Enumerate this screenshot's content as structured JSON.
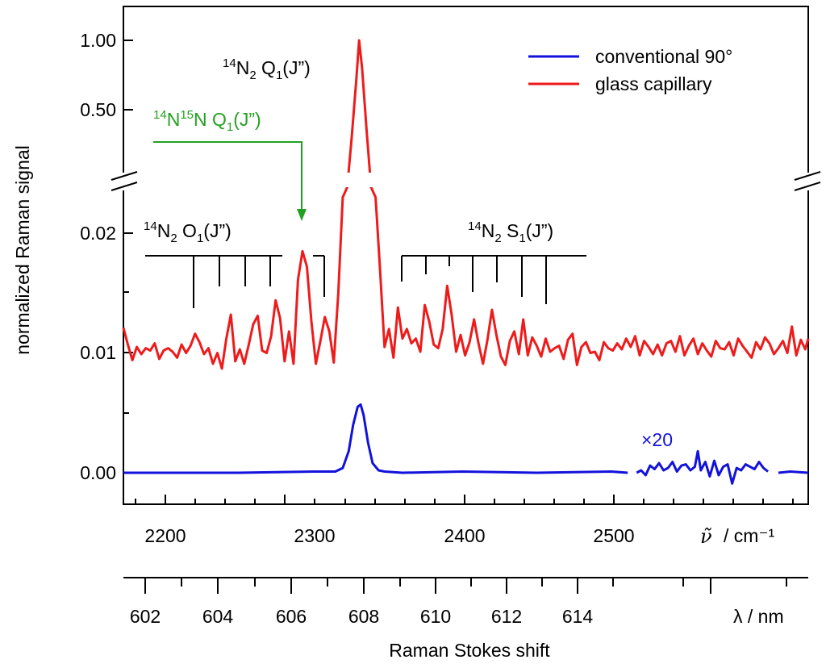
{
  "chart_data": {
    "type": "line",
    "xlabel": "Raman Stokes shift",
    "ylabel": "normalized  Raman  signal",
    "x_axis_primary": {
      "unit_label": "cm⁻¹",
      "symbol": "ν̃",
      "range": [
        2173,
        2632
      ],
      "ticks": [
        "2200",
        "2300",
        "2400",
        "2500"
      ]
    },
    "x_axis_secondary": {
      "unit_label": "λ / nm",
      "ticks": [
        "602",
        "604",
        "606",
        "608",
        "610",
        "612",
        "614"
      ]
    },
    "y_axis": {
      "broken": true,
      "lower_range": [
        -0.0025,
        0.0248
      ],
      "upper_range": [
        0.1,
        1.1
      ],
      "tick_labels": [
        "0.00",
        "0.01",
        "0.02",
        "0.50",
        "1.00"
      ]
    },
    "legend": {
      "placement": "top-right",
      "entries": [
        {
          "name": "conventional 90°",
          "color": "#1212dc"
        },
        {
          "name": "glass capillary",
          "color": "#ee1b1b"
        }
      ]
    },
    "annotations": {
      "n2_q": {
        "main": "N",
        "sup1": "14",
        "sub1": "2",
        "rest": " Q",
        "sub2": "1",
        "tail": "(J”)"
      },
      "n15n_q": {
        "sup1": "14",
        "p1": "N",
        "sup2": "15",
        "p2": "N Q",
        "sub": "1",
        "tail": "(J”)",
        "color": "#22a022"
      },
      "n2_o": {
        "sup1": "14",
        "main": "N",
        "sub1": "2",
        "rest": " O",
        "sub2": "1",
        "tail": "(J”)"
      },
      "n2_s": {
        "sup1": "14",
        "main": "N",
        "sub1": "2",
        "rest": " S",
        "sub2": "1",
        "tail": "(J”)"
      },
      "scale_factor": "×20"
    },
    "o_branch_lines_cm": [
      2222,
      2238,
      2254,
      2270,
      2305
    ],
    "s_branch_lines_cm": [
      2357,
      2374,
      2390,
      2406,
      2422,
      2438,
      2455
    ],
    "series": [
      {
        "name": "glass capillary",
        "color": "#ee1b1b",
        "x": [
          2173,
          2176,
          2179,
          2182,
          2185,
          2188,
          2191,
          2194,
          2197,
          2200,
          2203,
          2206,
          2209,
          2212,
          2215,
          2218,
          2221,
          2224,
          2227,
          2230,
          2233,
          2236,
          2239,
          2242,
          2245,
          2248,
          2251,
          2254,
          2257,
          2260,
          2263,
          2266,
          2269,
          2272,
          2275,
          2278,
          2281,
          2284,
          2287,
          2290,
          2293,
          2296,
          2299,
          2302,
          2305,
          2308,
          2311,
          2314,
          2317,
          2320,
          2323,
          2326,
          2329,
          2331,
          2333,
          2336,
          2339,
          2342,
          2345,
          2348,
          2351,
          2354,
          2357,
          2360,
          2363,
          2366,
          2369,
          2372,
          2375,
          2378,
          2381,
          2384,
          2387,
          2390,
          2393,
          2396,
          2399,
          2402,
          2405,
          2408,
          2411,
          2414,
          2417,
          2420,
          2423,
          2426,
          2429,
          2432,
          2435,
          2438,
          2441,
          2444,
          2447,
          2450,
          2453,
          2456,
          2459,
          2462,
          2465,
          2468,
          2471,
          2474,
          2477,
          2480,
          2483,
          2486,
          2489,
          2492,
          2495,
          2498,
          2501,
          2504,
          2507,
          2510,
          2513,
          2516,
          2519,
          2522,
          2525,
          2528,
          2531,
          2534,
          2537,
          2540,
          2543,
          2546,
          2549,
          2552,
          2555,
          2558,
          2561,
          2564,
          2567,
          2570,
          2573,
          2576,
          2579,
          2582,
          2585,
          2588,
          2591,
          2594,
          2597,
          2600,
          2603,
          2606,
          2609,
          2612,
          2615,
          2618,
          2621,
          2624,
          2627,
          2630,
          2632
        ],
        "y": [
          0.0121,
          0.0107,
          0.0094,
          0.0105,
          0.0099,
          0.0104,
          0.0102,
          0.0108,
          0.0095,
          0.0102,
          0.0104,
          0.0101,
          0.0096,
          0.0107,
          0.01,
          0.0106,
          0.0116,
          0.0109,
          0.0099,
          0.0104,
          0.0091,
          0.01,
          0.0087,
          0.0112,
          0.0132,
          0.0093,
          0.0103,
          0.0091,
          0.0107,
          0.0124,
          0.0131,
          0.0102,
          0.01,
          0.0114,
          0.0144,
          0.0129,
          0.0093,
          0.0118,
          0.0091,
          0.0161,
          0.0185,
          0.0172,
          0.0126,
          0.0091,
          0.011,
          0.013,
          0.0118,
          0.0092,
          0.015,
          0.023,
          0.04,
          0.3,
          0.7,
          1.0,
          0.8,
          0.35,
          0.045,
          0.023,
          0.017,
          0.0105,
          0.012,
          0.0096,
          0.0138,
          0.0112,
          0.012,
          0.0108,
          0.0112,
          0.0101,
          0.014,
          0.0126,
          0.0107,
          0.0104,
          0.012,
          0.0156,
          0.0132,
          0.0101,
          0.0115,
          0.0098,
          0.0109,
          0.0128,
          0.0108,
          0.0091,
          0.0111,
          0.0136,
          0.0115,
          0.0097,
          0.009,
          0.011,
          0.0118,
          0.0099,
          0.0128,
          0.0098,
          0.0113,
          0.0106,
          0.0097,
          0.0112,
          0.0101,
          0.0104,
          0.0106,
          0.0095,
          0.0111,
          0.0116,
          0.009,
          0.0105,
          0.0109,
          0.01,
          0.0101,
          0.0094,
          0.0109,
          0.0104,
          0.0102,
          0.0108,
          0.0103,
          0.0112,
          0.0105,
          0.0114,
          0.0098,
          0.011,
          0.0105,
          0.0099,
          0.0107,
          0.0098,
          0.0108,
          0.011,
          0.0101,
          0.0114,
          0.0098,
          0.0106,
          0.0112,
          0.0099,
          0.0108,
          0.0102,
          0.0097,
          0.011,
          0.0104,
          0.0103,
          0.0109,
          0.0098,
          0.0112,
          0.0106,
          0.0101,
          0.0096,
          0.0109,
          0.0103,
          0.0113,
          0.0108,
          0.0099,
          0.0104,
          0.011,
          0.01,
          0.0122,
          0.0098,
          0.0111,
          0.0103,
          0.0112
        ]
      },
      {
        "name": "conventional 90°",
        "color": "#1212dc",
        "x": [
          2173,
          2200,
          2250,
          2300,
          2315,
          2320,
          2324,
          2327,
          2330,
          2332,
          2334,
          2337,
          2340,
          2344,
          2348,
          2360,
          2400,
          2450,
          2500,
          2511
        ],
        "y": [
          0.0,
          0.0,
          0.0,
          0.0001,
          0.0001,
          0.0004,
          0.0018,
          0.004,
          0.0055,
          0.0057,
          0.0048,
          0.0025,
          0.0008,
          0.0002,
          0.0001,
          0.0,
          0.0001,
          0.0,
          0.0001,
          0.0
        ]
      },
      {
        "name": "conventional 90° (×20)",
        "color": "#1212dc",
        "x": [
          2517,
          2520,
          2523,
          2526,
          2529,
          2532,
          2535,
          2538,
          2541,
          2544,
          2547,
          2550,
          2553,
          2556,
          2558,
          2560,
          2563,
          2566,
          2569,
          2572,
          2575,
          2578,
          2581,
          2584,
          2587,
          2590,
          2593,
          2596,
          2599,
          2602,
          2605
        ],
        "y": [
          0.0,
          0.0002,
          -0.0002,
          0.0006,
          0.0003,
          0.0008,
          0.0002,
          0.0004,
          0.0009,
          0.0001,
          0.0006,
          0.0007,
          0.0002,
          0.0005,
          0.0018,
          0.0002,
          0.0009,
          -0.0003,
          0.001,
          -0.0002,
          0.0005,
          0.0007,
          -0.0009,
          0.0004,
          0.0002,
          0.0007,
          0.0005,
          0.0003,
          0.0009,
          0.0004,
          0.0001
        ]
      },
      {
        "name": "conventional 90° tail",
        "color": "#1212dc",
        "x": [
          2612,
          2620,
          2632
        ],
        "y": [
          0.0,
          0.0001,
          0.0
        ]
      }
    ]
  }
}
